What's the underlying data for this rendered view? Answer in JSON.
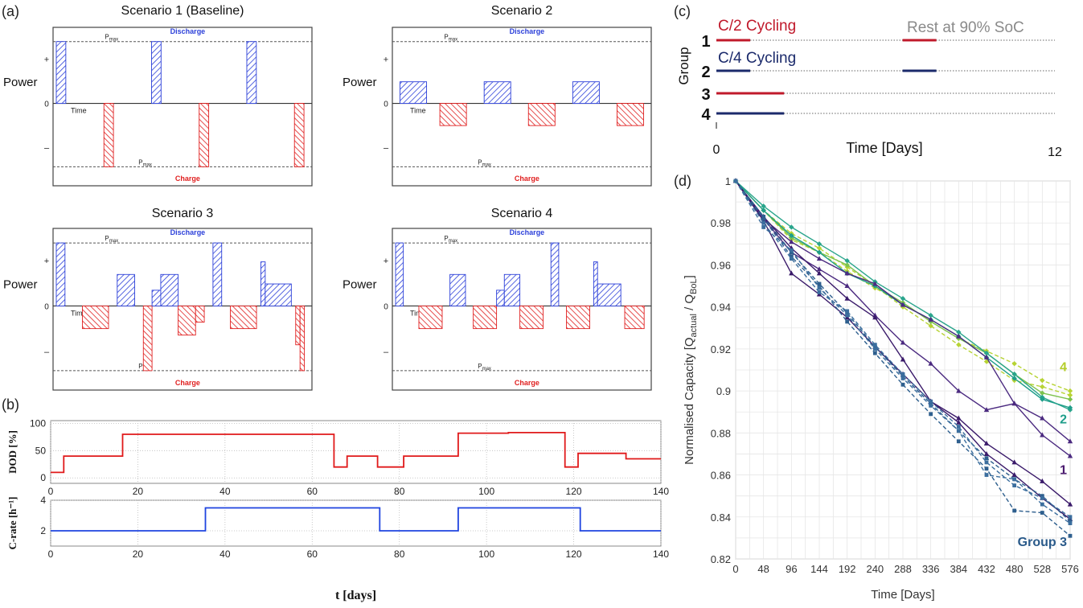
{
  "panel_labels": {
    "a": "(a)",
    "b": "(b)",
    "c": "(c)",
    "d": "(d)"
  },
  "chart_data": [
    {
      "id": "panel-a",
      "type": "bar",
      "axis_labels": {
        "y": "Power",
        "x": "Time",
        "plus": "+",
        "zero": "0",
        "minus": "–"
      },
      "limits": {
        "upper": "P",
        "upper_sub": "max",
        "upper_name": "Discharge",
        "lower": "P",
        "lower_sub": "max",
        "lower_name": "Charge"
      },
      "scenarios": [
        {
          "title": "Scenario 1 (Baseline)",
          "bars": [
            {
              "t": [
                0,
                1
              ],
              "p": 1
            },
            {
              "t": [
                5,
                6
              ],
              "p": -1
            },
            {
              "t": [
                10,
                11
              ],
              "p": 1
            },
            {
              "t": [
                15,
                16
              ],
              "p": -1
            },
            {
              "t": [
                20,
                21
              ],
              "p": 1
            },
            {
              "t": [
                25,
                26
              ],
              "p": -1
            }
          ]
        },
        {
          "title": "Scenario 2",
          "bars": [
            {
              "t": [
                0.5,
                3.5
              ],
              "p": 0.35
            },
            {
              "t": [
                5,
                8
              ],
              "p": -0.35
            },
            {
              "t": [
                10,
                13
              ],
              "p": 0.35
            },
            {
              "t": [
                15,
                18
              ],
              "p": -0.35
            },
            {
              "t": [
                20,
                23
              ],
              "p": 0.35
            },
            {
              "t": [
                25,
                28
              ],
              "p": -0.35
            }
          ]
        },
        {
          "title": "Scenario 3",
          "bars": [
            {
              "t": [
                0,
                1
              ],
              "p": 1
            },
            {
              "t": [
                3,
                6
              ],
              "p": -0.35
            },
            {
              "t": [
                7,
                9
              ],
              "p": 0.5
            },
            {
              "t": [
                10,
                11
              ],
              "p": -1
            },
            {
              "t": [
                11,
                12
              ],
              "p": 0.25
            },
            {
              "t": [
                12,
                14
              ],
              "p": 0.5
            },
            {
              "t": [
                14,
                16
              ],
              "p": -0.45
            },
            {
              "t": [
                16,
                17
              ],
              "p": -0.25
            },
            {
              "t": [
                18,
                19
              ],
              "p": 1
            },
            {
              "t": [
                20,
                23
              ],
              "p": -0.35
            },
            {
              "t": [
                23.5,
                24
              ],
              "p": 0.7
            },
            {
              "t": [
                24,
                27
              ],
              "p": 0.35
            },
            {
              "t": [
                27.5,
                28
              ],
              "p": -0.6
            },
            {
              "t": [
                28,
                28.5
              ],
              "p": -1
            }
          ]
        },
        {
          "title": "Scenario 4",
          "bars": [
            {
              "t": [
                0,
                1
              ],
              "p": 1
            },
            {
              "t": [
                3,
                6
              ],
              "p": -0.35
            },
            {
              "t": [
                7,
                9
              ],
              "p": 0.5
            },
            {
              "t": [
                10,
                13
              ],
              "p": -0.35
            },
            {
              "t": [
                13,
                14
              ],
              "p": 0.25
            },
            {
              "t": [
                14,
                16
              ],
              "p": 0.5
            },
            {
              "t": [
                16,
                19
              ],
              "p": -0.35
            },
            {
              "t": [
                20,
                21
              ],
              "p": 1
            },
            {
              "t": [
                22,
                25
              ],
              "p": -0.35
            },
            {
              "t": [
                25.5,
                26
              ],
              "p": 0.7
            },
            {
              "t": [
                26,
                29
              ],
              "p": 0.35
            },
            {
              "t": [
                29.5,
                32
              ],
              "p": -0.35
            }
          ]
        }
      ]
    },
    {
      "id": "panel-b",
      "type": "line",
      "xlabel": "t [days]",
      "xlim": [
        0,
        140
      ],
      "xticks": [
        0,
        20,
        40,
        60,
        80,
        100,
        120,
        140
      ],
      "subplots": [
        {
          "ylabel": "DOD [%]",
          "ylim": [
            -10,
            105
          ],
          "yticks": [
            0,
            50,
            100
          ],
          "color": "#e0191a",
          "x": [
            0,
            3,
            3,
            16.5,
            16.5,
            65,
            65,
            68,
            68,
            75,
            75,
            81,
            81,
            93.5,
            93.5,
            105,
            105,
            118,
            118,
            121,
            121,
            132,
            132,
            140
          ],
          "y": [
            10,
            10,
            40,
            40,
            80,
            80,
            20,
            20,
            40,
            40,
            20,
            20,
            40,
            40,
            82,
            82,
            83,
            83,
            20,
            20,
            45,
            45,
            35,
            35
          ]
        },
        {
          "ylabel": "C-rate [h⁻¹]",
          "ylim": [
            1,
            4
          ],
          "yticks": [
            2,
            4
          ],
          "color": "#1f44e0",
          "x": [
            0,
            35.5,
            35.5,
            75.5,
            75.5,
            93.5,
            93.5,
            121.5,
            121.5,
            140
          ],
          "y": [
            2,
            2,
            3.5,
            3.5,
            2,
            2,
            3.5,
            3.5,
            2,
            2
          ]
        }
      ]
    },
    {
      "id": "panel-c",
      "type": "line",
      "ylabel": "Group",
      "xlabel": "Time [Days]",
      "xlim": [
        0,
        12
      ],
      "xtick_labels": [
        "0",
        "12"
      ],
      "annotations": {
        "c2": "C/2 Cycling",
        "c4": "C/4 Cycling",
        "rest": "Rest at 90% SoC"
      },
      "groups": [
        {
          "name": "1",
          "color": "#c0192b",
          "segments": [
            [
              0,
              1.2
            ],
            [
              6.6,
              7.8
            ]
          ]
        },
        {
          "name": "2",
          "color": "#1b2a6b",
          "segments": [
            [
              0,
              1.2
            ],
            [
              6.6,
              7.8
            ]
          ]
        },
        {
          "name": "3",
          "color": "#c0192b",
          "segments": [
            [
              0,
              2.4
            ]
          ]
        },
        {
          "name": "4",
          "color": "#1b2a6b",
          "segments": [
            [
              0,
              2.4
            ]
          ]
        }
      ]
    },
    {
      "id": "panel-d",
      "type": "line",
      "xlabel": "Time [Days]",
      "ylabel": "Normalised Capacity [Q",
      "ylabel_sub1": "actual",
      "ylabel_mid": " / Q",
      "ylabel_sub2": "BoL",
      "ylabel_end": "]",
      "xlim": [
        0,
        576
      ],
      "ylim": [
        0.82,
        1.0
      ],
      "xticks": [
        0,
        48,
        96,
        144,
        192,
        240,
        288,
        336,
        384,
        432,
        480,
        528,
        576
      ],
      "yticks": [
        0.82,
        0.84,
        0.86,
        0.88,
        0.9,
        0.92,
        0.94,
        0.96,
        0.98,
        1
      ],
      "ytick_labels": [
        "0.82",
        "0.84",
        "0.86",
        "0.88",
        "0.9",
        "0.92",
        "0.94",
        "0.96",
        "0.98",
        "1"
      ],
      "grid": true,
      "x": [
        0,
        48,
        96,
        144,
        192,
        240,
        288,
        336,
        384,
        432,
        480,
        528,
        576
      ],
      "group_labels": [
        {
          "text": "4",
          "color": "#b4cd2a",
          "x": 576,
          "y": 0.9095
        },
        {
          "text": "2",
          "color": "#1f9e8a",
          "x": 576,
          "y": 0.8845
        },
        {
          "text": "1",
          "color": "#4a1a6e",
          "x": 576,
          "y": 0.8605
        },
        {
          "text": "Group 3",
          "color": "#2a5a8a",
          "x": 576,
          "y": 0.8262
        }
      ],
      "series": [
        {
          "color": "#b7d334",
          "dash": true,
          "marker": "diamond",
          "values": [
            1,
            0.986,
            0.975,
            0.968,
            0.959,
            0.95,
            0.94,
            0.931,
            0.922,
            0.914,
            0.905,
            0.902,
            0.898
          ]
        },
        {
          "color": "#b7d334",
          "dash": true,
          "marker": "diamond",
          "values": [
            1,
            0.986,
            0.972,
            0.966,
            0.957,
            0.949,
            0.942,
            0.933,
            0.925,
            0.919,
            0.913,
            0.905,
            0.9
          ]
        },
        {
          "color": "#7ec24f",
          "dash": false,
          "marker": "diamond",
          "values": [
            1,
            0.986,
            0.973,
            0.966,
            0.96,
            0.95,
            0.942,
            0.933,
            0.925,
            0.918,
            0.908,
            0.899,
            0.896
          ]
        },
        {
          "color": "#2aa58c",
          "dash": false,
          "marker": "diamond",
          "values": [
            1,
            0.988,
            0.978,
            0.97,
            0.962,
            0.952,
            0.944,
            0.936,
            0.928,
            0.918,
            0.908,
            0.897,
            0.891
          ]
        },
        {
          "color": "#1f9e8a",
          "dash": false,
          "marker": "diamond",
          "values": [
            1,
            0.986,
            0.974,
            0.966,
            0.956,
            0.95,
            0.941,
            0.934,
            0.926,
            0.916,
            0.906,
            0.896,
            0.892
          ]
        },
        {
          "color": "#4b2a80",
          "dash": false,
          "marker": "triangle",
          "values": [
            1,
            0.982,
            0.971,
            0.963,
            0.956,
            0.951,
            0.941,
            0.934,
            0.926,
            0.916,
            0.894,
            0.887,
            0.876
          ]
        },
        {
          "color": "#4b2a80",
          "dash": false,
          "marker": "triangle",
          "values": [
            1,
            0.982,
            0.966,
            0.958,
            0.95,
            0.936,
            0.923,
            0.913,
            0.9,
            0.891,
            0.894,
            0.879,
            0.869
          ]
        },
        {
          "color": "#3a1a6a",
          "dash": false,
          "marker": "triangle",
          "values": [
            1,
            0.983,
            0.968,
            0.956,
            0.944,
            0.935,
            0.915,
            0.895,
            0.887,
            0.875,
            0.866,
            0.857,
            0.846
          ]
        },
        {
          "color": "#3a1a6a",
          "dash": false,
          "marker": "triangle",
          "values": [
            1,
            0.981,
            0.956,
            0.946,
            0.935,
            0.921,
            0.908,
            0.895,
            0.885,
            0.87,
            0.86,
            0.849,
            0.839
          ]
        },
        {
          "color": "#2e5f8e",
          "dash": true,
          "marker": "square",
          "values": [
            1,
            0.983,
            0.966,
            0.951,
            0.937,
            0.921,
            0.907,
            0.894,
            0.881,
            0.868,
            0.858,
            0.85,
            0.838
          ]
        },
        {
          "color": "#2e5f8e",
          "dash": true,
          "marker": "square",
          "values": [
            1,
            0.982,
            0.964,
            0.95,
            0.933,
            0.918,
            0.903,
            0.889,
            0.876,
            0.863,
            0.843,
            0.842,
            0.831
          ]
        },
        {
          "color": "#3b6e9e",
          "dash": true,
          "marker": "square",
          "values": [
            1,
            0.978,
            0.967,
            0.949,
            0.936,
            0.92,
            0.906,
            0.893,
            0.881,
            0.86,
            0.858,
            0.846,
            0.837
          ]
        },
        {
          "color": "#3b6e9e",
          "dash": true,
          "marker": "square",
          "values": [
            1,
            0.98,
            0.963,
            0.947,
            0.938,
            0.922,
            0.908,
            0.895,
            0.883,
            0.866,
            0.855,
            0.849,
            0.84
          ]
        }
      ]
    }
  ]
}
